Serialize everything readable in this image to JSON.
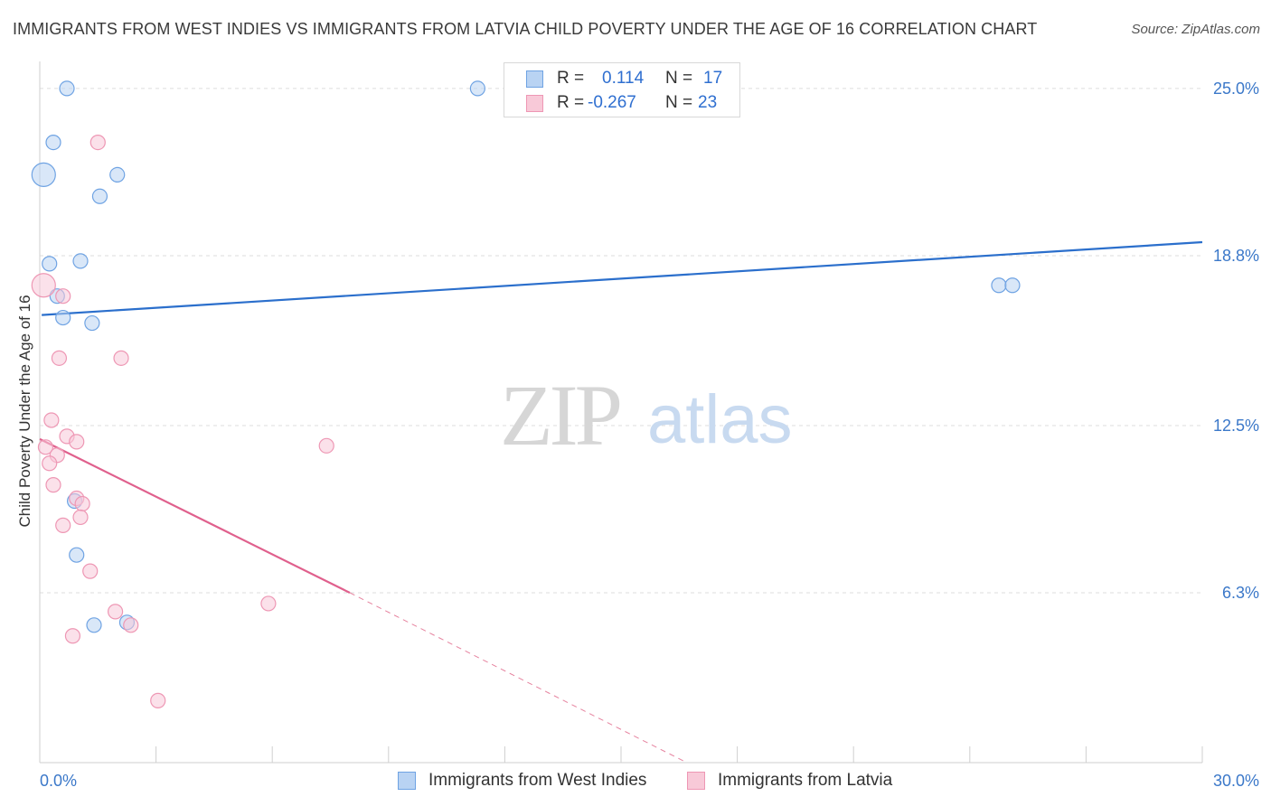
{
  "title": "IMMIGRANTS FROM WEST INDIES VS IMMIGRANTS FROM LATVIA CHILD POVERTY UNDER THE AGE OF 16 CORRELATION CHART",
  "source": "Source: ZipAtlas.com",
  "watermark": {
    "zip": "ZIP",
    "atlas": "atlas"
  },
  "legend": {
    "rows": [
      {
        "r_label": "R =",
        "r_value": "0.114",
        "n_label": "N =",
        "n_value": "17"
      },
      {
        "r_label": "R =",
        "r_value": "-0.267",
        "n_label": "N =",
        "n_value": "23"
      }
    ]
  },
  "chart_data": {
    "type": "scatter",
    "xlabel": "",
    "ylabel": "Child Poverty Under the Age of 16",
    "xlim": [
      0,
      30
    ],
    "ylim": [
      0,
      25.6
    ],
    "x_tick_labels": [
      {
        "value": 0,
        "label": "0.0%"
      },
      {
        "value": 30,
        "label": "30.0%"
      }
    ],
    "y_ticks": [
      {
        "value": 6.3,
        "label": "6.3%"
      },
      {
        "value": 12.5,
        "label": "12.5%"
      },
      {
        "value": 18.8,
        "label": "18.8%"
      },
      {
        "value": 25.0,
        "label": "25.0%"
      }
    ],
    "grid": true,
    "legend_position": "top-center",
    "series": [
      {
        "name": "Immigrants from West Indies",
        "color": "#6fa3e3",
        "fill": "#b9d3f3",
        "trend": {
          "x0": 0.05,
          "y0": 16.6,
          "x1": 30.0,
          "y1": 19.3
        },
        "points": [
          {
            "x": 0.7,
            "y": 25.0,
            "s": 1
          },
          {
            "x": 11.3,
            "y": 25.0,
            "s": 1
          },
          {
            "x": 0.35,
            "y": 23.0,
            "s": 1
          },
          {
            "x": 0.1,
            "y": 21.8,
            "s": 2
          },
          {
            "x": 2.0,
            "y": 21.8,
            "s": 1
          },
          {
            "x": 1.55,
            "y": 21.0,
            "s": 1
          },
          {
            "x": 0.25,
            "y": 18.5,
            "s": 1
          },
          {
            "x": 1.05,
            "y": 18.6,
            "s": 1
          },
          {
            "x": 0.45,
            "y": 17.3,
            "s": 1
          },
          {
            "x": 0.6,
            "y": 16.5,
            "s": 1
          },
          {
            "x": 1.35,
            "y": 16.3,
            "s": 1
          },
          {
            "x": 24.75,
            "y": 17.7,
            "s": 1
          },
          {
            "x": 25.1,
            "y": 17.7,
            "s": 1
          },
          {
            "x": 0.9,
            "y": 9.7,
            "s": 1
          },
          {
            "x": 0.95,
            "y": 7.7,
            "s": 1
          },
          {
            "x": 1.4,
            "y": 5.1,
            "s": 1
          },
          {
            "x": 2.25,
            "y": 5.2,
            "s": 1
          }
        ]
      },
      {
        "name": "Immigrants from Latvia",
        "color": "#ee97b4",
        "fill": "#f8c9d8",
        "trend": {
          "x0": 0.0,
          "y0": 12.0,
          "x1": 8.0,
          "y1": 6.3,
          "dash_to_x": 16.7,
          "dash_to_y": 0.0
        },
        "points": [
          {
            "x": 1.5,
            "y": 23.0,
            "s": 1
          },
          {
            "x": 0.1,
            "y": 17.7,
            "s": 2
          },
          {
            "x": 0.6,
            "y": 17.3,
            "s": 1
          },
          {
            "x": 0.5,
            "y": 15.0,
            "s": 1
          },
          {
            "x": 2.1,
            "y": 15.0,
            "s": 1
          },
          {
            "x": 0.3,
            "y": 12.7,
            "s": 1
          },
          {
            "x": 0.7,
            "y": 12.1,
            "s": 1
          },
          {
            "x": 0.95,
            "y": 11.9,
            "s": 1
          },
          {
            "x": 0.15,
            "y": 11.7,
            "s": 1
          },
          {
            "x": 0.45,
            "y": 11.4,
            "s": 1
          },
          {
            "x": 0.25,
            "y": 11.1,
            "s": 1
          },
          {
            "x": 7.4,
            "y": 11.75,
            "s": 1
          },
          {
            "x": 0.35,
            "y": 10.3,
            "s": 1
          },
          {
            "x": 0.95,
            "y": 9.8,
            "s": 1
          },
          {
            "x": 1.1,
            "y": 9.6,
            "s": 1
          },
          {
            "x": 1.05,
            "y": 9.1,
            "s": 1
          },
          {
            "x": 0.6,
            "y": 8.8,
            "s": 1
          },
          {
            "x": 1.3,
            "y": 7.1,
            "s": 1
          },
          {
            "x": 5.9,
            "y": 5.9,
            "s": 1
          },
          {
            "x": 1.95,
            "y": 5.6,
            "s": 1
          },
          {
            "x": 2.35,
            "y": 5.1,
            "s": 1
          },
          {
            "x": 0.85,
            "y": 4.7,
            "s": 1
          },
          {
            "x": 3.05,
            "y": 2.3,
            "s": 1
          }
        ]
      }
    ]
  }
}
